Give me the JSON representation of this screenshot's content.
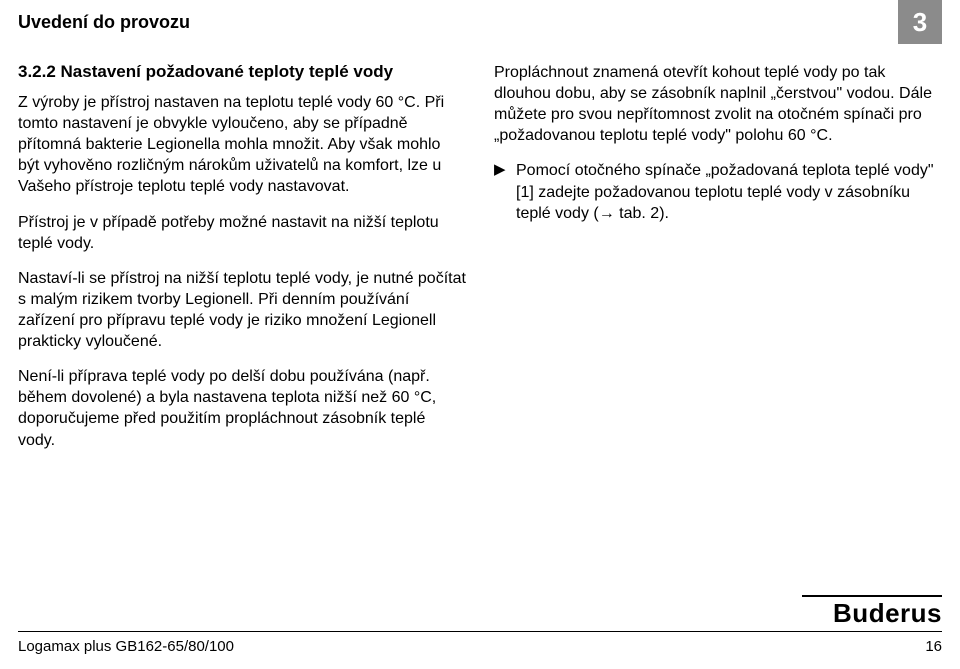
{
  "header": {
    "title": "Uvedení do provozu",
    "page_badge": "3"
  },
  "left": {
    "subheading": "3.2.2 Nastavení požadované teploty teplé vody",
    "p1": "Z výroby je přístroj nastaven na teplotu teplé vody 60 °C. Při tomto nastavení je obvykle vyloučeno, aby se případně přítomná bakterie Legionella mohla množit. Aby však mohlo být vyhověno rozličným nárokům uživatelů na komfort, lze u Vašeho přístroje teplotu teplé vody nastavovat.",
    "p2": "Přístroj je v případě potřeby možné nastavit na nižší teplotu teplé vody.",
    "p3": "Nastaví-li se přístroj na nižší teplotu teplé vody, je nutné počítat s malým rizikem tvorby Legionell. Při denním používání zařízení pro přípravu teplé vody je riziko množení Legionell prakticky vyloučené.",
    "p4": "Není-li příprava teplé vody po delší dobu používána (např. během dovolené) a byla nastavena teplota nižší než 60 °C, doporučujeme před použitím propláchnout zásobník teplé vody."
  },
  "right": {
    "p1": "Propláchnout znamená otevřít kohout teplé vody po tak dlouhou dobu, aby se zásobník naplnil „čerstvou\" vodou. Dále můžete pro svou nepřítomnost zvolit na otočném spínači pro „požadovanou teplotu teplé vody\" polohu 60 °C.",
    "bullet_marker": "▶",
    "bullet": "Pomocí otočného spínače „požadovaná teplota teplé vody\" [1] zadejte požadovanou teplotu teplé vody v zásobníku teplé vody (→ tab. 2)."
  },
  "footer": {
    "model": "Logamax plus GB162-65/80/100",
    "page": "16",
    "brand": "Buderus"
  },
  "colors": {
    "badge_bg": "#8b8b8b",
    "badge_fg": "#ffffff",
    "text": "#000000",
    "bg": "#ffffff"
  }
}
